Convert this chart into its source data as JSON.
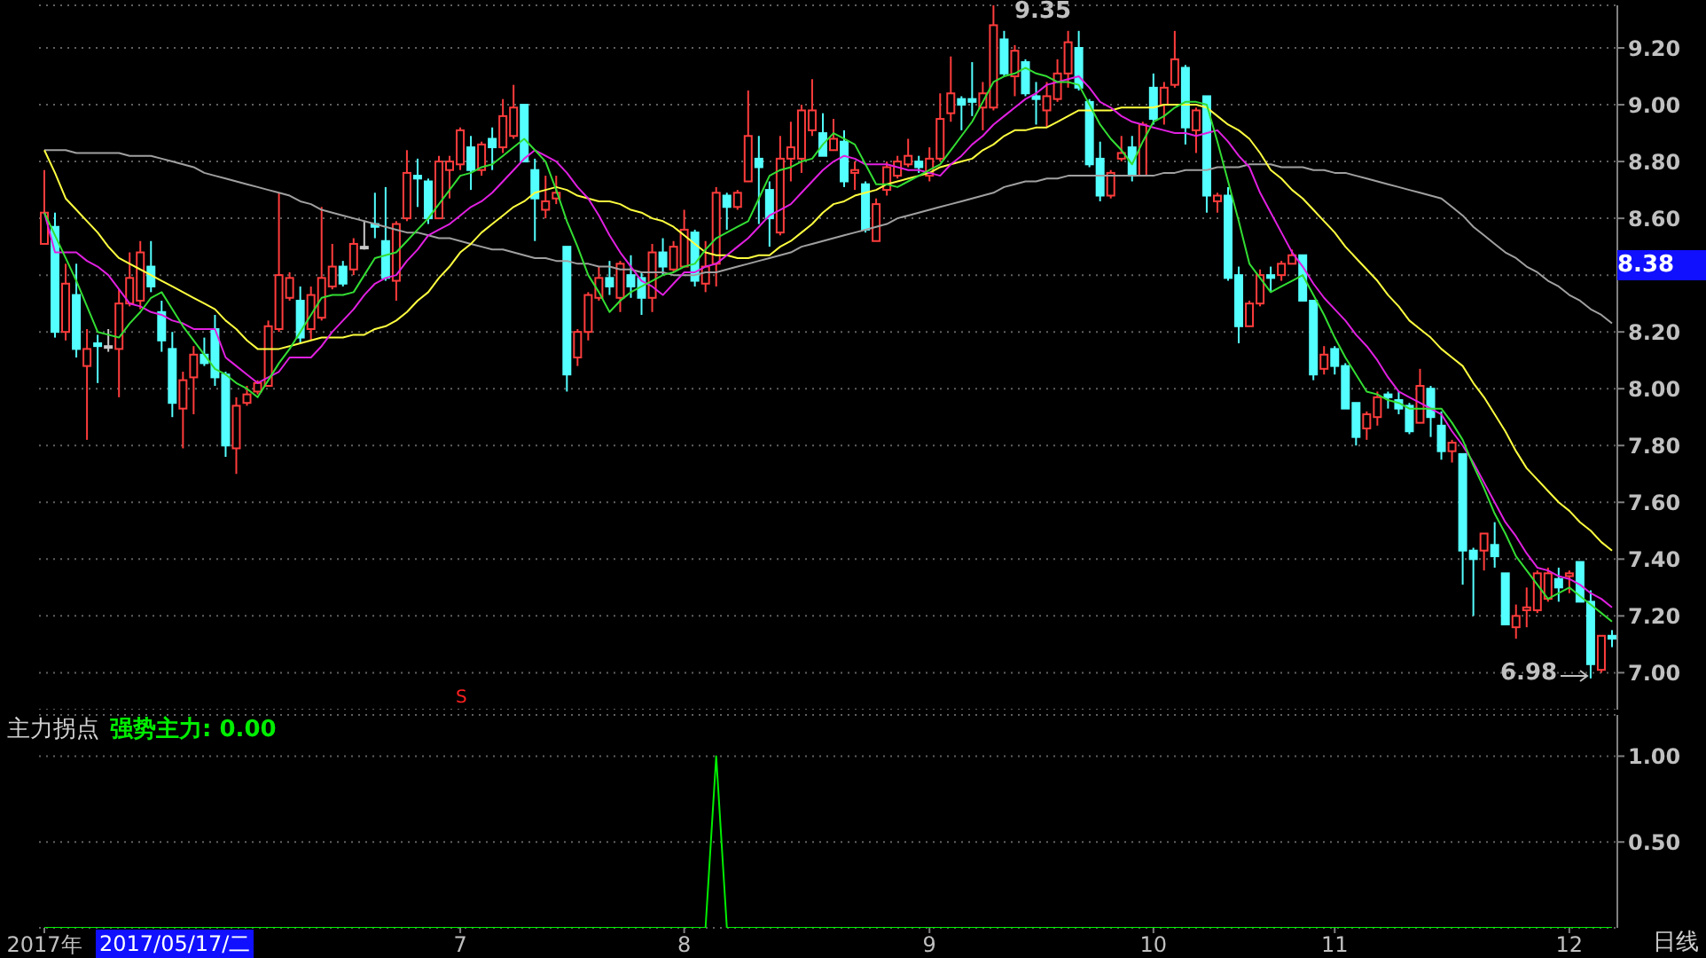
{
  "chart_data": [
    {
      "type": "candlestick",
      "ylim": [
        6.87,
        9.35
      ],
      "tick_labels": "y",
      "grid": "y",
      "yticks": [
        {
          "value": 7,
          "label": "7.00"
        },
        {
          "value": 7.2,
          "label": "7.20"
        },
        {
          "value": 7.4,
          "label": "7.40"
        },
        {
          "value": 7.6,
          "label": "7.60"
        },
        {
          "value": 7.8,
          "label": "7.80"
        },
        {
          "value": 8,
          "label": "8.00"
        },
        {
          "value": 8.2,
          "label": "8.20"
        },
        {
          "value": 8.4,
          "label": null
        },
        {
          "value": 8.6,
          "label": "8.60"
        },
        {
          "value": 8.8,
          "label": "8.80"
        },
        {
          "value": 9,
          "label": "9.00"
        },
        {
          "value": 9.2,
          "label": "9.20"
        }
      ],
      "ohlc": [
        [
          8.51,
          8.77,
          8.51,
          8.62
        ],
        [
          8.57,
          8.62,
          8.18,
          8.2
        ],
        [
          8.2,
          8.44,
          8.17,
          8.37
        ],
        [
          8.33,
          8.44,
          8.11,
          8.14
        ],
        [
          8.08,
          8.21,
          7.82,
          8.14
        ],
        [
          8.16,
          8.19,
          8.02,
          8.15
        ],
        [
          8.15,
          8.21,
          8.13,
          8.15
        ],
        [
          8.14,
          8.35,
          7.97,
          8.3
        ],
        [
          8.3,
          8.48,
          8.29,
          8.39
        ],
        [
          8.31,
          8.52,
          8.28,
          8.48
        ],
        [
          8.43,
          8.52,
          8.34,
          8.36
        ],
        [
          8.27,
          8.31,
          8.13,
          8.17
        ],
        [
          8.14,
          8.2,
          7.9,
          7.95
        ],
        [
          7.93,
          8.06,
          7.79,
          8.03
        ],
        [
          8.04,
          8.15,
          7.91,
          8.12
        ],
        [
          8.12,
          8.18,
          8.08,
          8.09
        ],
        [
          8.21,
          8.26,
          8.01,
          8.04
        ],
        [
          8.05,
          8.06,
          7.76,
          7.8
        ],
        [
          7.79,
          7.97,
          7.7,
          7.94
        ],
        [
          7.95,
          8.01,
          7.94,
          7.98
        ],
        [
          7.99,
          8.03,
          7.98,
          8.02
        ],
        [
          8.01,
          8.24,
          8.01,
          8.22
        ],
        [
          8.21,
          8.69,
          8.2,
          8.4
        ],
        [
          8.32,
          8.41,
          8.31,
          8.39
        ],
        [
          8.31,
          8.36,
          8.16,
          8.18
        ],
        [
          8.21,
          8.36,
          8.17,
          8.33
        ],
        [
          8.25,
          8.64,
          8.24,
          8.39
        ],
        [
          8.36,
          8.51,
          8.35,
          8.43
        ],
        [
          8.43,
          8.45,
          8.36,
          8.37
        ],
        [
          8.42,
          8.53,
          8.4,
          8.51
        ],
        [
          8.5,
          8.59,
          8.49,
          8.5
        ],
        [
          8.58,
          8.69,
          8.53,
          8.57
        ],
        [
          8.52,
          8.71,
          8.38,
          8.39
        ],
        [
          8.38,
          8.59,
          8.31,
          8.58
        ],
        [
          8.6,
          8.84,
          8.59,
          8.76
        ],
        [
          8.75,
          8.81,
          8.64,
          8.74
        ],
        [
          8.73,
          8.74,
          8.58,
          8.6
        ],
        [
          8.6,
          8.82,
          8.6,
          8.8
        ],
        [
          8.77,
          8.82,
          8.67,
          8.8
        ],
        [
          8.79,
          8.92,
          8.77,
          8.91
        ],
        [
          8.85,
          8.89,
          8.7,
          8.77
        ],
        [
          8.77,
          8.87,
          8.75,
          8.86
        ],
        [
          8.88,
          8.92,
          8.77,
          8.85
        ],
        [
          8.85,
          9.02,
          8.83,
          8.96
        ],
        [
          8.89,
          9.07,
          8.88,
          8.99
        ],
        [
          9.0,
          9.0,
          8.8,
          8.8
        ],
        [
          8.77,
          8.81,
          8.52,
          8.67
        ],
        [
          8.63,
          8.75,
          8.6,
          8.66
        ],
        [
          8.67,
          8.75,
          8.65,
          8.69
        ],
        [
          8.5,
          8.5,
          7.99,
          8.05
        ],
        [
          8.11,
          8.21,
          8.08,
          8.2
        ],
        [
          8.2,
          8.34,
          8.17,
          8.33
        ],
        [
          8.32,
          8.43,
          8.31,
          8.39
        ],
        [
          8.39,
          8.45,
          8.33,
          8.36
        ],
        [
          8.32,
          8.45,
          8.27,
          8.44
        ],
        [
          8.4,
          8.47,
          8.32,
          8.36
        ],
        [
          8.39,
          8.41,
          8.26,
          8.32
        ],
        [
          8.32,
          8.51,
          8.27,
          8.48
        ],
        [
          8.48,
          8.53,
          8.4,
          8.43
        ],
        [
          8.42,
          8.52,
          8.41,
          8.5
        ],
        [
          8.43,
          8.63,
          8.43,
          8.56
        ],
        [
          8.55,
          8.56,
          8.36,
          8.38
        ],
        [
          8.37,
          8.52,
          8.34,
          8.43
        ],
        [
          8.44,
          8.71,
          8.36,
          8.69
        ],
        [
          8.68,
          8.69,
          8.56,
          8.64
        ],
        [
          8.64,
          8.7,
          8.63,
          8.69
        ],
        [
          8.73,
          9.05,
          8.73,
          8.89
        ],
        [
          8.81,
          8.89,
          8.58,
          8.78
        ],
        [
          8.7,
          8.73,
          8.5,
          8.6
        ],
        [
          8.55,
          8.89,
          8.54,
          8.81
        ],
        [
          8.81,
          8.94,
          8.73,
          8.85
        ],
        [
          8.81,
          9.0,
          8.76,
          8.98
        ],
        [
          8.91,
          9.09,
          8.89,
          8.98
        ],
        [
          8.9,
          8.97,
          8.82,
          8.82
        ],
        [
          8.84,
          8.95,
          8.84,
          8.88
        ],
        [
          8.87,
          8.91,
          8.71,
          8.73
        ],
        [
          8.76,
          8.8,
          8.7,
          8.77
        ],
        [
          8.72,
          8.73,
          8.55,
          8.56
        ],
        [
          8.52,
          8.67,
          8.52,
          8.65
        ],
        [
          8.7,
          8.8,
          8.68,
          8.78
        ],
        [
          8.75,
          8.82,
          8.74,
          8.8
        ],
        [
          8.79,
          8.88,
          8.78,
          8.82
        ],
        [
          8.8,
          8.82,
          8.76,
          8.78
        ],
        [
          8.75,
          8.85,
          8.73,
          8.81
        ],
        [
          8.81,
          9.04,
          8.8,
          8.95
        ],
        [
          8.97,
          9.17,
          8.94,
          9.04
        ],
        [
          9.02,
          9.03,
          8.91,
          9.0
        ],
        [
          9.02,
          9.15,
          8.96,
          9.01
        ],
        [
          8.99,
          9.08,
          8.91,
          9.04
        ],
        [
          8.99,
          9.35,
          8.98,
          9.28
        ],
        [
          9.23,
          9.26,
          9.1,
          9.11
        ],
        [
          9.1,
          9.21,
          9.03,
          9.19
        ],
        [
          9.15,
          9.16,
          9.03,
          9.04
        ],
        [
          9.03,
          9.08,
          8.93,
          9.02
        ],
        [
          8.98,
          9.08,
          8.92,
          9.03
        ],
        [
          9.02,
          9.16,
          9.01,
          9.11
        ],
        [
          9.11,
          9.26,
          9.06,
          9.22
        ],
        [
          9.2,
          9.26,
          9.05,
          9.06
        ],
        [
          9.01,
          9.02,
          8.78,
          8.79
        ],
        [
          8.81,
          8.87,
          8.66,
          8.68
        ],
        [
          8.68,
          8.77,
          8.67,
          8.76
        ],
        [
          8.81,
          8.89,
          8.8,
          8.83
        ],
        [
          8.85,
          8.89,
          8.73,
          8.75
        ],
        [
          8.75,
          8.94,
          8.75,
          8.93
        ],
        [
          9.06,
          9.11,
          8.93,
          8.95
        ],
        [
          9.0,
          9.08,
          8.93,
          9.06
        ],
        [
          9.07,
          9.26,
          9.06,
          9.16
        ],
        [
          9.13,
          9.14,
          8.86,
          8.92
        ],
        [
          8.91,
          8.99,
          8.83,
          8.98
        ],
        [
          9.03,
          9.03,
          8.62,
          8.68
        ],
        [
          8.66,
          8.69,
          8.62,
          8.68
        ],
        [
          8.68,
          8.71,
          8.38,
          8.39
        ],
        [
          8.4,
          8.43,
          8.16,
          8.22
        ],
        [
          8.22,
          8.31,
          8.22,
          8.3
        ],
        [
          8.3,
          8.42,
          8.29,
          8.4
        ],
        [
          8.4,
          8.43,
          8.34,
          8.39
        ],
        [
          8.4,
          8.45,
          8.38,
          8.44
        ],
        [
          8.44,
          8.49,
          8.44,
          8.47
        ],
        [
          8.47,
          8.47,
          8.31,
          8.31
        ],
        [
          8.31,
          8.31,
          8.03,
          8.05
        ],
        [
          8.07,
          8.15,
          8.05,
          8.12
        ],
        [
          8.14,
          8.15,
          8.05,
          8.08
        ],
        [
          8.08,
          8.09,
          7.93,
          7.93
        ],
        [
          7.95,
          7.95,
          7.8,
          7.83
        ],
        [
          7.86,
          7.92,
          7.82,
          7.91
        ],
        [
          7.9,
          7.99,
          7.87,
          7.97
        ],
        [
          7.98,
          7.99,
          7.93,
          7.97
        ],
        [
          7.96,
          7.99,
          7.91,
          7.93
        ],
        [
          7.94,
          7.95,
          7.84,
          7.85
        ],
        [
          7.88,
          8.07,
          7.88,
          8.01
        ],
        [
          8.0,
          8.01,
          7.83,
          7.9
        ],
        [
          7.87,
          7.92,
          7.75,
          7.78
        ],
        [
          7.78,
          7.82,
          7.74,
          7.81
        ],
        [
          7.77,
          7.77,
          7.31,
          7.43
        ],
        [
          7.43,
          7.44,
          7.2,
          7.4
        ],
        [
          7.43,
          7.49,
          7.36,
          7.49
        ],
        [
          7.45,
          7.53,
          7.37,
          7.41
        ],
        [
          7.35,
          7.35,
          7.17,
          7.17
        ],
        [
          7.16,
          7.24,
          7.12,
          7.2
        ],
        [
          7.22,
          7.3,
          7.16,
          7.23
        ],
        [
          7.22,
          7.36,
          7.21,
          7.35
        ],
        [
          7.26,
          7.37,
          7.25,
          7.35
        ],
        [
          7.33,
          7.37,
          7.25,
          7.3
        ],
        [
          7.34,
          7.36,
          7.28,
          7.35
        ],
        [
          7.39,
          7.39,
          7.25,
          7.25
        ],
        [
          7.25,
          7.29,
          6.98,
          7.03
        ],
        [
          7.01,
          7.13,
          7.0,
          7.13
        ],
        [
          7.13,
          7.15,
          7.09,
          7.12
        ]
      ],
      "series": [
        {
          "type": "line",
          "color": "#a0a0a0",
          "values": [
            8.84,
            8.84,
            8.84,
            8.83,
            8.83,
            8.83,
            8.83,
            8.83,
            8.82,
            8.82,
            8.82,
            8.81,
            8.8,
            8.79,
            8.78,
            8.76,
            8.75,
            8.74,
            8.73,
            8.72,
            8.71,
            8.7,
            8.69,
            8.68,
            8.66,
            8.65,
            8.63,
            8.62,
            8.61,
            8.6,
            8.59,
            8.58,
            8.57,
            8.56,
            8.55,
            8.55,
            8.54,
            8.53,
            8.53,
            8.52,
            8.51,
            8.5,
            8.49,
            8.49,
            8.48,
            8.47,
            8.46,
            8.46,
            8.45,
            8.45,
            8.44,
            8.44,
            8.43,
            8.43,
            8.42,
            8.42,
            8.41,
            8.41,
            8.41,
            8.4,
            8.4,
            8.4,
            8.41,
            8.41,
            8.42,
            8.43,
            8.44,
            8.45,
            8.46,
            8.47,
            8.48,
            8.5,
            8.51,
            8.52,
            8.53,
            8.54,
            8.55,
            8.56,
            8.57,
            8.58,
            8.6,
            8.61,
            8.62,
            8.63,
            8.64,
            8.65,
            8.66,
            8.67,
            8.68,
            8.69,
            8.71,
            8.72,
            8.73,
            8.73,
            8.74,
            8.74,
            8.75,
            8.75,
            8.75,
            8.75,
            8.75,
            8.75,
            8.75,
            8.75,
            8.75,
            8.76,
            8.76,
            8.77,
            8.77,
            8.77,
            8.78,
            8.78,
            8.78,
            8.79,
            8.79,
            8.79,
            8.78,
            8.78,
            8.78,
            8.77,
            8.77,
            8.76,
            8.76,
            8.75,
            8.74,
            8.73,
            8.72,
            8.71,
            8.7,
            8.69,
            8.68,
            8.67,
            8.64,
            8.61,
            8.57,
            8.54,
            8.51,
            8.48,
            8.46,
            8.43,
            8.41,
            8.38,
            8.36,
            8.33,
            8.31,
            8.28,
            8.26,
            8.23
          ]
        },
        {
          "type": "line",
          "color": "#ffff40",
          "values": [
            8.84,
            8.76,
            8.67,
            8.63,
            8.59,
            8.55,
            8.5,
            8.46,
            8.44,
            8.42,
            8.4,
            8.38,
            8.36,
            8.34,
            8.32,
            8.3,
            8.28,
            8.24,
            8.21,
            8.17,
            8.14,
            8.14,
            8.14,
            8.15,
            8.16,
            8.17,
            8.18,
            8.18,
            8.18,
            8.19,
            8.19,
            8.21,
            8.22,
            8.24,
            8.27,
            8.31,
            8.34,
            8.39,
            8.43,
            8.48,
            8.51,
            8.55,
            8.58,
            8.61,
            8.64,
            8.66,
            8.69,
            8.7,
            8.71,
            8.7,
            8.68,
            8.67,
            8.66,
            8.66,
            8.65,
            8.63,
            8.62,
            8.6,
            8.59,
            8.57,
            8.54,
            8.51,
            8.48,
            8.47,
            8.47,
            8.46,
            8.46,
            8.47,
            8.47,
            8.5,
            8.52,
            8.55,
            8.58,
            8.62,
            8.65,
            8.66,
            8.68,
            8.69,
            8.7,
            8.72,
            8.73,
            8.74,
            8.75,
            8.76,
            8.78,
            8.79,
            8.8,
            8.81,
            8.84,
            8.86,
            8.89,
            8.91,
            8.91,
            8.92,
            8.92,
            8.94,
            8.96,
            8.98,
            8.98,
            8.98,
            8.98,
            8.99,
            8.99,
            8.99,
            8.99,
            9.0,
            9.0,
            9.0,
            9.0,
            8.99,
            8.96,
            8.93,
            8.91,
            8.88,
            8.83,
            8.77,
            8.74,
            8.7,
            8.67,
            8.63,
            8.59,
            8.55,
            8.5,
            8.46,
            8.42,
            8.38,
            8.33,
            8.29,
            8.24,
            8.21,
            8.18,
            8.14,
            8.11,
            8.08,
            8.02,
            7.97,
            7.91,
            7.85,
            7.78,
            7.72,
            7.68,
            7.64,
            7.6,
            7.57,
            7.53,
            7.5,
            7.46,
            7.43
          ]
        },
        {
          "type": "line",
          "color": "#e020e0",
          "values": [
            8.62,
            8.48,
            8.48,
            8.48,
            8.45,
            8.43,
            8.4,
            8.35,
            8.3,
            8.29,
            8.27,
            8.26,
            8.24,
            8.23,
            8.21,
            8.21,
            8.21,
            8.11,
            8.08,
            8.05,
            8.02,
            8.04,
            8.06,
            8.11,
            8.11,
            8.11,
            8.15,
            8.2,
            8.24,
            8.28,
            8.33,
            8.37,
            8.39,
            8.4,
            8.45,
            8.49,
            8.54,
            8.56,
            8.58,
            8.61,
            8.64,
            8.66,
            8.69,
            8.73,
            8.77,
            8.81,
            8.84,
            8.82,
            8.8,
            8.76,
            8.71,
            8.67,
            8.61,
            8.54,
            8.48,
            8.43,
            8.38,
            8.36,
            8.33,
            8.37,
            8.41,
            8.41,
            8.43,
            8.44,
            8.47,
            8.5,
            8.53,
            8.57,
            8.61,
            8.63,
            8.65,
            8.69,
            8.73,
            8.77,
            8.8,
            8.82,
            8.81,
            8.79,
            8.79,
            8.79,
            8.78,
            8.77,
            8.77,
            8.76,
            8.75,
            8.79,
            8.82,
            8.86,
            8.89,
            8.93,
            8.96,
            8.99,
            9.02,
            9.04,
            9.07,
            9.08,
            9.09,
            9.1,
            9.06,
            9.01,
            8.99,
            8.96,
            8.94,
            8.93,
            8.92,
            8.91,
            8.9,
            8.9,
            8.89,
            8.9,
            8.91,
            8.87,
            8.82,
            8.78,
            8.69,
            8.62,
            8.55,
            8.48,
            8.43,
            8.37,
            8.32,
            8.28,
            8.24,
            8.19,
            8.15,
            8.1,
            8.04,
            7.99,
            7.97,
            7.95,
            7.93,
            7.91,
            7.85,
            7.8,
            7.74,
            7.67,
            7.6,
            7.53,
            7.48,
            7.42,
            7.37,
            7.36,
            7.34,
            7.33,
            7.31,
            7.28,
            7.26,
            7.23
          ]
        },
        {
          "type": "line",
          "color": "#33dd33",
          "values": [
            8.62,
            8.54,
            8.46,
            8.38,
            8.29,
            8.2,
            8.19,
            8.18,
            8.23,
            8.27,
            8.32,
            8.34,
            8.28,
            8.22,
            8.17,
            8.12,
            8.07,
            8.05,
            8.02,
            8.0,
            7.97,
            8.03,
            8.09,
            8.14,
            8.2,
            8.26,
            8.32,
            8.33,
            8.33,
            8.34,
            8.4,
            8.46,
            8.47,
            8.48,
            8.52,
            8.56,
            8.6,
            8.65,
            8.7,
            8.75,
            8.76,
            8.78,
            8.79,
            8.82,
            8.85,
            8.88,
            8.84,
            8.8,
            8.7,
            8.59,
            8.5,
            8.4,
            8.34,
            8.27,
            8.31,
            8.34,
            8.36,
            8.38,
            8.4,
            8.41,
            8.43,
            8.44,
            8.49,
            8.53,
            8.55,
            8.57,
            8.59,
            8.67,
            8.75,
            8.77,
            8.78,
            8.8,
            8.81,
            8.86,
            8.9,
            8.88,
            8.86,
            8.79,
            8.72,
            8.72,
            8.71,
            8.73,
            8.75,
            8.77,
            8.79,
            8.84,
            8.89,
            8.94,
            9.01,
            9.08,
            9.1,
            9.11,
            9.13,
            9.11,
            9.1,
            9.08,
            9.08,
            9.07,
            9.0,
            8.93,
            8.88,
            8.84,
            8.79,
            8.87,
            8.94,
            8.96,
            8.99,
            9.01,
            9.01,
            9.0,
            8.87,
            8.73,
            8.59,
            8.44,
            8.39,
            8.34,
            8.36,
            8.38,
            8.4,
            8.33,
            8.26,
            8.18,
            8.11,
            8.05,
            7.99,
            7.98,
            7.96,
            7.95,
            7.93,
            7.93,
            7.93,
            7.93,
            7.88,
            7.82,
            7.73,
            7.65,
            7.56,
            7.49,
            7.41,
            7.36,
            7.31,
            7.26,
            7.28,
            7.3,
            7.27,
            7.24,
            7.21,
            7.18
          ]
        }
      ],
      "annotations": [
        "9.35",
        "6.98",
        "8.38",
        "S"
      ]
    },
    {
      "type": "line",
      "title": "主力拐点",
      "legend": "top left",
      "grid": "y",
      "ylim": [
        0,
        1.24
      ],
      "categories": [
        "2017年",
        null,
        null,
        null,
        null,
        null,
        null,
        null,
        null,
        null,
        null,
        null,
        null,
        null,
        null,
        null,
        null,
        null,
        null,
        null,
        null,
        null,
        null,
        null,
        null,
        null,
        null,
        null,
        null,
        null,
        null,
        null,
        null,
        null,
        null,
        null,
        null,
        null,
        null,
        "7",
        null,
        null,
        null,
        null,
        null,
        null,
        null,
        null,
        null,
        null,
        null,
        null,
        null,
        null,
        null,
        null,
        null,
        null,
        null,
        null,
        "8",
        null,
        null,
        null,
        null,
        null,
        null,
        null,
        null,
        null,
        null,
        null,
        null,
        null,
        null,
        null,
        null,
        null,
        null,
        null,
        null,
        null,
        null,
        "9",
        null,
        null,
        null,
        null,
        null,
        null,
        null,
        null,
        null,
        null,
        null,
        null,
        null,
        null,
        null,
        null,
        null,
        null,
        null,
        null,
        "10",
        null,
        null,
        null,
        null,
        null,
        null,
        null,
        null,
        null,
        null,
        null,
        null,
        null,
        null,
        null,
        null,
        "11",
        null,
        null,
        null,
        null,
        null,
        null,
        null,
        null,
        null,
        null,
        null,
        null,
        null,
        null,
        null,
        null,
        null,
        null,
        null,
        null,
        null,
        "12",
        null,
        null,
        null,
        null
      ],
      "yticks": [
        {
          "value": 0.5,
          "label": "0.50"
        },
        {
          "value": 1,
          "label": "1.00"
        }
      ],
      "series": [
        {
          "name": "强势主力: 0.00",
          "color": "#00ee00",
          "values": [
            0,
            0,
            0,
            0,
            0,
            0,
            0,
            0,
            0,
            0,
            0,
            0,
            0,
            0,
            0,
            0,
            0,
            0,
            0,
            0,
            0,
            0,
            0,
            0,
            0,
            0,
            0,
            0,
            0,
            0,
            0,
            0,
            0,
            0,
            0,
            0,
            0,
            0,
            0,
            0,
            0,
            0,
            0,
            0,
            0,
            0,
            0,
            0,
            0,
            0,
            0,
            0,
            0,
            0,
            0,
            0,
            0,
            0,
            0,
            0,
            0,
            0,
            0,
            1,
            0,
            0,
            0,
            0,
            0,
            0,
            0,
            0,
            0,
            0,
            0,
            0,
            0,
            0,
            0,
            0,
            0,
            0,
            0,
            0,
            0,
            0,
            0,
            0,
            0,
            0,
            0,
            0,
            0,
            0,
            0,
            0,
            0,
            0,
            0,
            0,
            0,
            0,
            0,
            0,
            0,
            0,
            0,
            0,
            0,
            0,
            0,
            0,
            0,
            0,
            0,
            0,
            0,
            0,
            0,
            0,
            0,
            0,
            0,
            0,
            0,
            0,
            0,
            0,
            0,
            0,
            0,
            0,
            0,
            0,
            0,
            0,
            0,
            0,
            0,
            0,
            0,
            0,
            0,
            0,
            0,
            0,
            0,
            0
          ]
        }
      ],
      "annotations": [
        "2017/05/17/二",
        "日线"
      ]
    }
  ]
}
